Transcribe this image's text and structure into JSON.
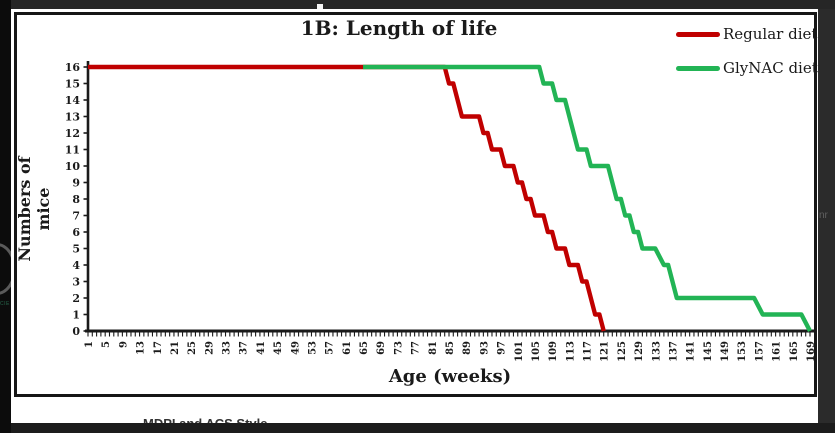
{
  "window": {
    "bottom_text": "MDPI and ACS Style",
    "left_edge_fragment": "CIE",
    "right_edge_fragment": "nr"
  },
  "chart_data": {
    "type": "line",
    "title": "1B: Length of life",
    "xlabel": "Age (weeks)",
    "ylabel": "Numbers of mice",
    "xlim": [
      1,
      169
    ],
    "ylim": [
      0,
      16
    ],
    "grid": false,
    "legend_position": "top-right",
    "x_tick_labels": [
      1,
      5,
      9,
      13,
      17,
      21,
      25,
      29,
      33,
      37,
      41,
      45,
      49,
      53,
      57,
      61,
      65,
      69,
      73,
      77,
      81,
      85,
      89,
      93,
      97,
      101,
      105,
      109,
      113,
      117,
      121,
      125,
      129,
      133,
      137,
      141,
      145,
      149,
      153,
      157,
      161,
      165,
      169
    ],
    "y_tick_labels": [
      0,
      1,
      2,
      3,
      4,
      5,
      6,
      7,
      8,
      9,
      10,
      11,
      12,
      13,
      14,
      15,
      16
    ],
    "axis_color": "#1a1a1a",
    "series": [
      {
        "name": "Regular diet",
        "color": "#c00000",
        "points": [
          [
            1,
            16
          ],
          [
            84,
            16
          ],
          [
            85,
            15
          ],
          [
            86,
            15
          ],
          [
            88,
            13
          ],
          [
            92,
            13
          ],
          [
            93,
            12
          ],
          [
            94,
            12
          ],
          [
            95,
            11
          ],
          [
            97,
            11
          ],
          [
            98,
            10
          ],
          [
            100,
            10
          ],
          [
            101,
            9
          ],
          [
            102,
            9
          ],
          [
            103,
            8
          ],
          [
            104,
            8
          ],
          [
            105,
            7
          ],
          [
            107,
            7
          ],
          [
            108,
            6
          ],
          [
            109,
            6
          ],
          [
            110,
            5
          ],
          [
            112,
            5
          ],
          [
            113,
            4
          ],
          [
            115,
            4
          ],
          [
            116,
            3
          ],
          [
            117,
            3
          ],
          [
            118,
            2
          ],
          [
            119,
            1
          ],
          [
            120,
            1
          ],
          [
            121,
            0
          ]
        ]
      },
      {
        "name": "GlyNAC diet",
        "color": "#22b455",
        "points": [
          [
            65,
            16
          ],
          [
            106,
            16
          ],
          [
            107,
            15
          ],
          [
            109,
            15
          ],
          [
            110,
            14
          ],
          [
            112,
            14
          ],
          [
            113,
            13
          ],
          [
            114,
            12
          ],
          [
            115,
            11
          ],
          [
            117,
            11
          ],
          [
            118,
            10
          ],
          [
            122,
            10
          ],
          [
            123,
            9
          ],
          [
            124,
            8
          ],
          [
            125,
            8
          ],
          [
            126,
            7
          ],
          [
            127,
            7
          ],
          [
            128,
            6
          ],
          [
            129,
            6
          ],
          [
            130,
            5
          ],
          [
            133,
            5
          ],
          [
            135,
            4
          ],
          [
            136,
            4
          ],
          [
            137,
            3
          ],
          [
            138,
            2
          ],
          [
            156,
            2
          ],
          [
            158,
            1
          ],
          [
            167,
            1
          ],
          [
            169,
            0
          ]
        ]
      }
    ]
  }
}
